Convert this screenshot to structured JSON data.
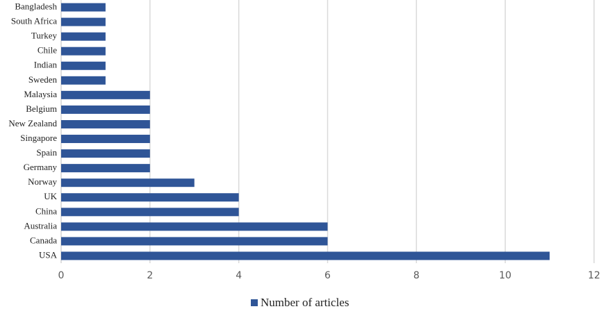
{
  "chart_data": {
    "type": "bar",
    "orientation": "horizontal",
    "categories": [
      "Bangladesh",
      "South Africa",
      "Turkey",
      "Chile",
      "Indian",
      "Sweden",
      "Malaysia",
      "Belgium",
      "New Zealand",
      "Singapore",
      "Spain",
      "Germany",
      "Norway",
      "UK",
      "China",
      "Australia",
      "Canada",
      "USA"
    ],
    "series": [
      {
        "name": "Number of articles",
        "color": "#2f5597",
        "values": [
          1,
          1,
          1,
          1,
          1,
          1,
          2,
          2,
          2,
          2,
          2,
          2,
          3,
          4,
          4,
          6,
          6,
          11
        ]
      }
    ],
    "xlim": [
      0,
      12
    ],
    "xticks": [
      0,
      2,
      4,
      6,
      8,
      10,
      12
    ],
    "grid": true,
    "legend": "bottom"
  }
}
